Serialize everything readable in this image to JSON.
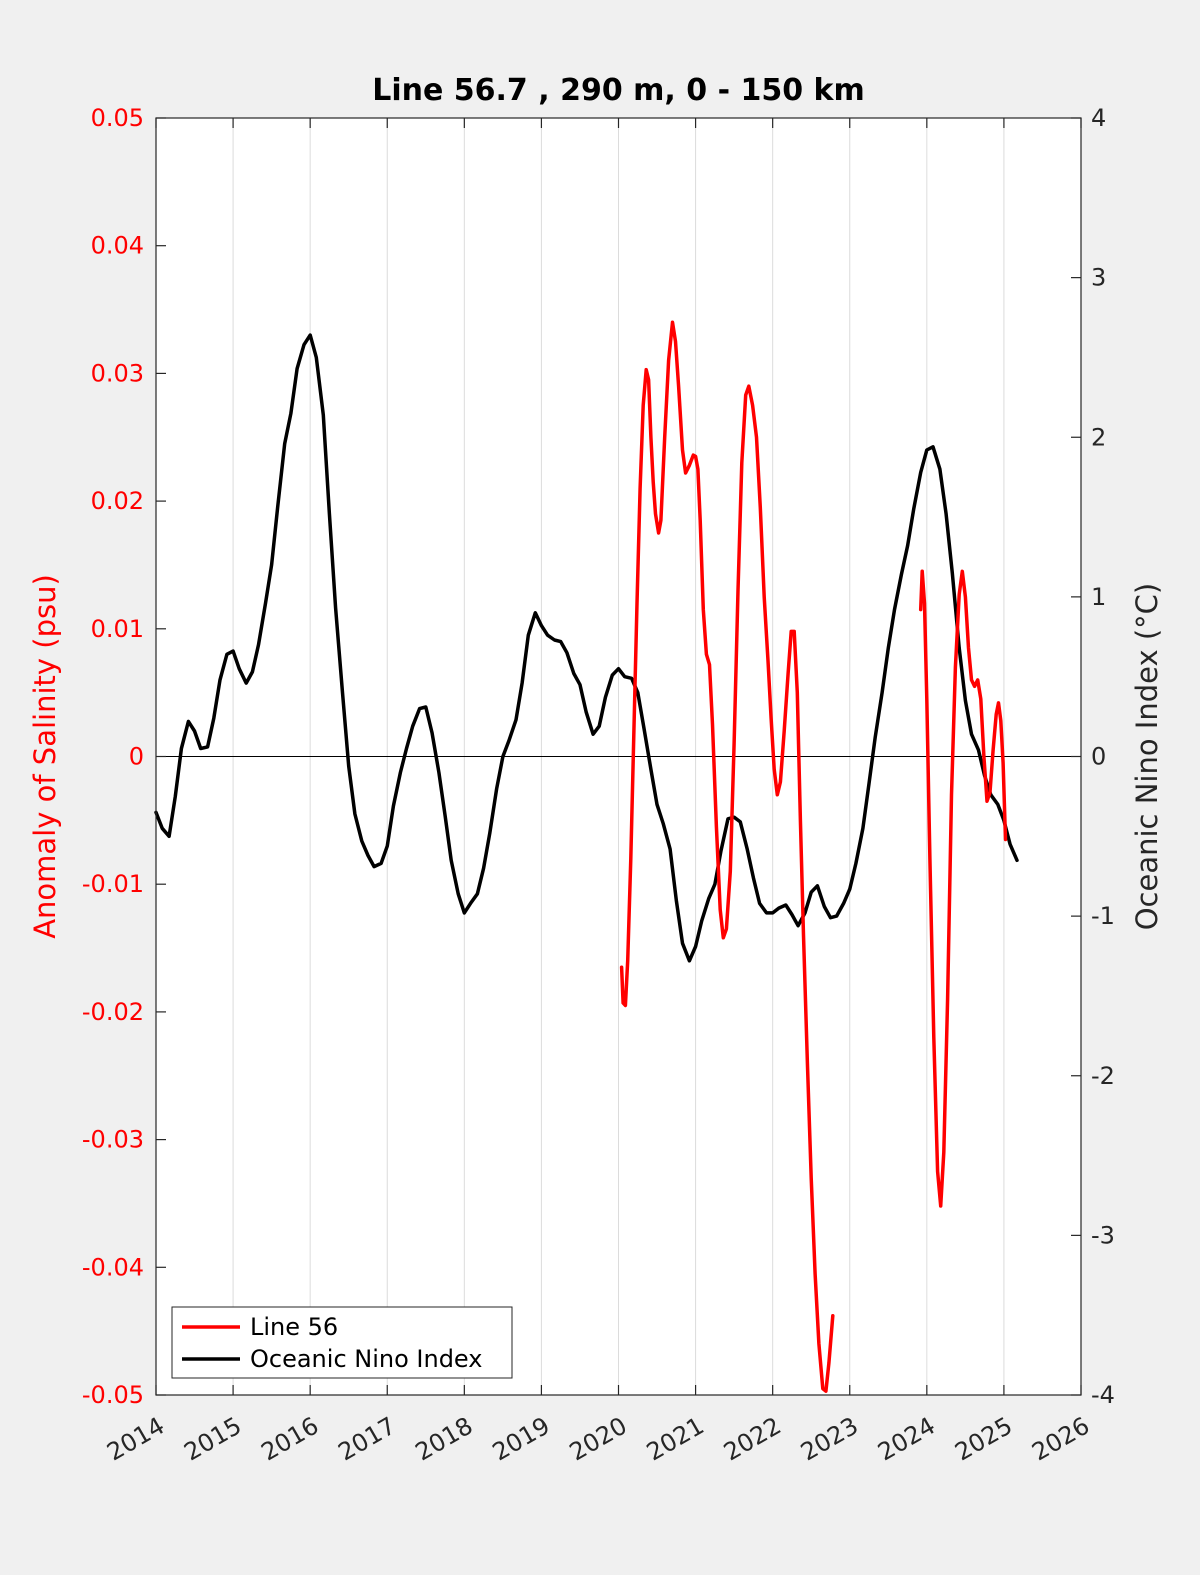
{
  "colors": {
    "salinity": "#ff0000",
    "oni": "#000000",
    "figure_background": "#f0f0f0",
    "plot_background": "#ffffff",
    "grid": "#dcdcdc"
  },
  "chart_data": {
    "type": "line",
    "title": "Line 56.7 , 290 m, 0 - 150 km",
    "xlabel": "",
    "ylabel_left": "Anomaly of Salinity (psu)",
    "ylabel_right": "Oceanic Nino Index (°C)",
    "xlim": [
      2014,
      2026
    ],
    "ylim_left": [
      -0.05,
      0.05
    ],
    "ylim_right": [
      -4,
      4
    ],
    "grid": "vertical",
    "legend_position": "bottom-left",
    "x_tick_labels": [
      "2014",
      "2015",
      "2016",
      "2017",
      "2018",
      "2019",
      "2020",
      "2021",
      "2022",
      "2023",
      "2024",
      "2025",
      "2026"
    ],
    "y_left_tick_labels": [
      "0.05",
      "0.04",
      "0.03",
      "0.02",
      "0.01",
      "0",
      "-0.01",
      "-0.02",
      "-0.03",
      "-0.04",
      "-0.05"
    ],
    "y_right_tick_labels": [
      "4",
      "3",
      "2",
      "1",
      "0",
      "-1",
      "-2",
      "-3",
      "-4"
    ],
    "series": [
      {
        "name": "Line 56",
        "axis": "left",
        "segments": [
          [
            [
              2020.04,
              -0.0165
            ],
            [
              2020.06,
              -0.0193
            ],
            [
              2020.09,
              -0.0195
            ],
            [
              2020.12,
              -0.016
            ],
            [
              2020.16,
              -0.008
            ],
            [
              2020.2,
              0.002
            ],
            [
              2020.24,
              0.012
            ],
            [
              2020.28,
              0.021
            ],
            [
              2020.32,
              0.0275
            ],
            [
              2020.36,
              0.0303
            ],
            [
              2020.39,
              0.0295
            ],
            [
              2020.42,
              0.025
            ],
            [
              2020.45,
              0.0215
            ],
            [
              2020.48,
              0.019
            ],
            [
              2020.52,
              0.0175
            ],
            [
              2020.55,
              0.0185
            ],
            [
              2020.6,
              0.025
            ],
            [
              2020.65,
              0.031
            ],
            [
              2020.7,
              0.034
            ],
            [
              2020.74,
              0.0325
            ],
            [
              2020.78,
              0.029
            ],
            [
              2020.83,
              0.024
            ],
            [
              2020.87,
              0.0222
            ],
            [
              2020.92,
              0.0228
            ],
            [
              2020.97,
              0.0236
            ],
            [
              2021.0,
              0.0235
            ],
            [
              2021.03,
              0.0225
            ],
            [
              2021.06,
              0.0185
            ],
            [
              2021.1,
              0.0115
            ],
            [
              2021.14,
              0.008
            ],
            [
              2021.18,
              0.0072
            ],
            [
              2021.22,
              0.0025
            ],
            [
              2021.27,
              -0.0055
            ],
            [
              2021.32,
              -0.012
            ],
            [
              2021.36,
              -0.0142
            ],
            [
              2021.4,
              -0.0135
            ],
            [
              2021.45,
              -0.009
            ],
            [
              2021.5,
              0.001
            ],
            [
              2021.55,
              0.013
            ],
            [
              2021.6,
              0.023
            ],
            [
              2021.65,
              0.0283
            ],
            [
              2021.69,
              0.029
            ],
            [
              2021.74,
              0.0275
            ],
            [
              2021.79,
              0.025
            ],
            [
              2021.84,
              0.0195
            ],
            [
              2021.89,
              0.0125
            ],
            [
              2021.94,
              0.0075
            ],
            [
              2021.98,
              0.003
            ],
            [
              2022.02,
              -0.001
            ],
            [
              2022.06,
              -0.003
            ],
            [
              2022.1,
              -0.002
            ],
            [
              2022.15,
              0.002
            ],
            [
              2022.2,
              0.0065
            ],
            [
              2022.24,
              0.0098
            ],
            [
              2022.28,
              0.0098
            ],
            [
              2022.32,
              0.005
            ],
            [
              2022.36,
              -0.005
            ],
            [
              2022.4,
              -0.014
            ],
            [
              2022.45,
              -0.024
            ],
            [
              2022.5,
              -0.033
            ],
            [
              2022.55,
              -0.0405
            ],
            [
              2022.6,
              -0.046
            ],
            [
              2022.65,
              -0.0495
            ],
            [
              2022.69,
              -0.0497
            ],
            [
              2022.73,
              -0.0475
            ],
            [
              2022.78,
              -0.0438
            ]
          ],
          [
            [
              2023.92,
              0.0115
            ],
            [
              2023.94,
              0.0145
            ],
            [
              2023.97,
              0.012
            ],
            [
              2024.0,
              0.0045
            ],
            [
              2024.04,
              -0.008
            ],
            [
              2024.09,
              -0.022
            ],
            [
              2024.14,
              -0.0325
            ],
            [
              2024.18,
              -0.0352
            ],
            [
              2024.22,
              -0.031
            ],
            [
              2024.27,
              -0.019
            ],
            [
              2024.32,
              -0.003
            ],
            [
              2024.37,
              0.007
            ],
            [
              2024.42,
              0.0127
            ],
            [
              2024.46,
              0.0145
            ],
            [
              2024.5,
              0.0125
            ],
            [
              2024.54,
              0.0085
            ],
            [
              2024.58,
              0.006
            ],
            [
              2024.62,
              0.0055
            ],
            [
              2024.66,
              0.006
            ],
            [
              2024.7,
              0.0045
            ],
            [
              2024.74,
              0.0
            ],
            [
              2024.78,
              -0.0035
            ],
            [
              2024.82,
              -0.0028
            ],
            [
              2024.86,
              0.0005
            ],
            [
              2024.9,
              0.0033
            ],
            [
              2024.93,
              0.0042
            ],
            [
              2024.96,
              0.0028
            ],
            [
              2024.99,
              -0.0005
            ],
            [
              2025.02,
              -0.0065
            ]
          ]
        ]
      },
      {
        "name": "Oceanic Nino Index",
        "axis": "right",
        "segments": [
          [
            [
              2014.0,
              -0.35
            ],
            [
              2014.08,
              -0.45
            ],
            [
              2014.17,
              -0.5
            ],
            [
              2014.25,
              -0.25
            ],
            [
              2014.33,
              0.05
            ],
            [
              2014.42,
              0.22
            ],
            [
              2014.5,
              0.16
            ],
            [
              2014.58,
              0.05
            ],
            [
              2014.67,
              0.06
            ],
            [
              2014.75,
              0.24
            ],
            [
              2014.83,
              0.48
            ],
            [
              2014.92,
              0.64
            ],
            [
              2015.0,
              0.66
            ],
            [
              2015.08,
              0.55
            ],
            [
              2015.17,
              0.46
            ],
            [
              2015.25,
              0.53
            ],
            [
              2015.33,
              0.7
            ],
            [
              2015.42,
              0.96
            ],
            [
              2015.5,
              1.2
            ],
            [
              2015.58,
              1.57
            ],
            [
              2015.67,
              1.96
            ],
            [
              2015.75,
              2.15
            ],
            [
              2015.83,
              2.43
            ],
            [
              2015.92,
              2.58
            ],
            [
              2016.0,
              2.64
            ],
            [
              2016.08,
              2.5
            ],
            [
              2016.17,
              2.14
            ],
            [
              2016.25,
              1.52
            ],
            [
              2016.33,
              0.93
            ],
            [
              2016.42,
              0.4
            ],
            [
              2016.5,
              -0.06
            ],
            [
              2016.58,
              -0.36
            ],
            [
              2016.67,
              -0.53
            ],
            [
              2016.75,
              -0.62
            ],
            [
              2016.83,
              -0.69
            ],
            [
              2016.92,
              -0.67
            ],
            [
              2017.0,
              -0.56
            ],
            [
              2017.08,
              -0.31
            ],
            [
              2017.17,
              -0.1
            ],
            [
              2017.25,
              0.05
            ],
            [
              2017.33,
              0.19
            ],
            [
              2017.42,
              0.3
            ],
            [
              2017.5,
              0.31
            ],
            [
              2017.58,
              0.15
            ],
            [
              2017.67,
              -0.1
            ],
            [
              2017.75,
              -0.37
            ],
            [
              2017.83,
              -0.65
            ],
            [
              2017.92,
              -0.86
            ],
            [
              2018.0,
              -0.98
            ],
            [
              2018.08,
              -0.92
            ],
            [
              2018.17,
              -0.86
            ],
            [
              2018.25,
              -0.7
            ],
            [
              2018.33,
              -0.48
            ],
            [
              2018.42,
              -0.2
            ],
            [
              2018.5,
              0.0
            ],
            [
              2018.58,
              0.1
            ],
            [
              2018.67,
              0.23
            ],
            [
              2018.75,
              0.46
            ],
            [
              2018.83,
              0.76
            ],
            [
              2018.92,
              0.9
            ],
            [
              2019.0,
              0.82
            ],
            [
              2019.08,
              0.76
            ],
            [
              2019.17,
              0.73
            ],
            [
              2019.25,
              0.72
            ],
            [
              2019.33,
              0.65
            ],
            [
              2019.42,
              0.52
            ],
            [
              2019.5,
              0.45
            ],
            [
              2019.58,
              0.28
            ],
            [
              2019.67,
              0.14
            ],
            [
              2019.75,
              0.19
            ],
            [
              2019.83,
              0.37
            ],
            [
              2019.92,
              0.51
            ],
            [
              2020.0,
              0.55
            ],
            [
              2020.08,
              0.5
            ],
            [
              2020.17,
              0.49
            ],
            [
              2020.25,
              0.4
            ],
            [
              2020.33,
              0.18
            ],
            [
              2020.42,
              -0.08
            ],
            [
              2020.5,
              -0.3
            ],
            [
              2020.58,
              -0.42
            ],
            [
              2020.67,
              -0.58
            ],
            [
              2020.75,
              -0.9
            ],
            [
              2020.83,
              -1.17
            ],
            [
              2020.92,
              -1.28
            ],
            [
              2021.0,
              -1.19
            ],
            [
              2021.08,
              -1.03
            ],
            [
              2021.17,
              -0.89
            ],
            [
              2021.25,
              -0.8
            ],
            [
              2021.33,
              -0.59
            ],
            [
              2021.42,
              -0.39
            ],
            [
              2021.5,
              -0.38
            ],
            [
              2021.58,
              -0.41
            ],
            [
              2021.67,
              -0.58
            ],
            [
              2021.75,
              -0.76
            ],
            [
              2021.83,
              -0.92
            ],
            [
              2021.92,
              -0.98
            ],
            [
              2022.0,
              -0.98
            ],
            [
              2022.08,
              -0.95
            ],
            [
              2022.17,
              -0.93
            ],
            [
              2022.25,
              -0.99
            ],
            [
              2022.33,
              -1.06
            ],
            [
              2022.42,
              -0.98
            ],
            [
              2022.5,
              -0.85
            ],
            [
              2022.58,
              -0.81
            ],
            [
              2022.67,
              -0.94
            ],
            [
              2022.75,
              -1.01
            ],
            [
              2022.83,
              -1.0
            ],
            [
              2022.92,
              -0.92
            ],
            [
              2023.0,
              -0.83
            ],
            [
              2023.08,
              -0.67
            ],
            [
              2023.17,
              -0.45
            ],
            [
              2023.25,
              -0.17
            ],
            [
              2023.33,
              0.12
            ],
            [
              2023.42,
              0.4
            ],
            [
              2023.5,
              0.68
            ],
            [
              2023.58,
              0.92
            ],
            [
              2023.67,
              1.14
            ],
            [
              2023.75,
              1.32
            ],
            [
              2023.83,
              1.55
            ],
            [
              2023.92,
              1.78
            ],
            [
              2024.0,
              1.92
            ],
            [
              2024.08,
              1.94
            ],
            [
              2024.17,
              1.8
            ],
            [
              2024.25,
              1.52
            ],
            [
              2024.33,
              1.15
            ],
            [
              2024.42,
              0.68
            ],
            [
              2024.5,
              0.35
            ],
            [
              2024.58,
              0.14
            ],
            [
              2024.67,
              0.04
            ],
            [
              2024.75,
              -0.12
            ],
            [
              2024.83,
              -0.24
            ],
            [
              2024.92,
              -0.3
            ],
            [
              2025.0,
              -0.4
            ],
            [
              2025.08,
              -0.55
            ],
            [
              2025.17,
              -0.65
            ]
          ]
        ]
      }
    ]
  }
}
